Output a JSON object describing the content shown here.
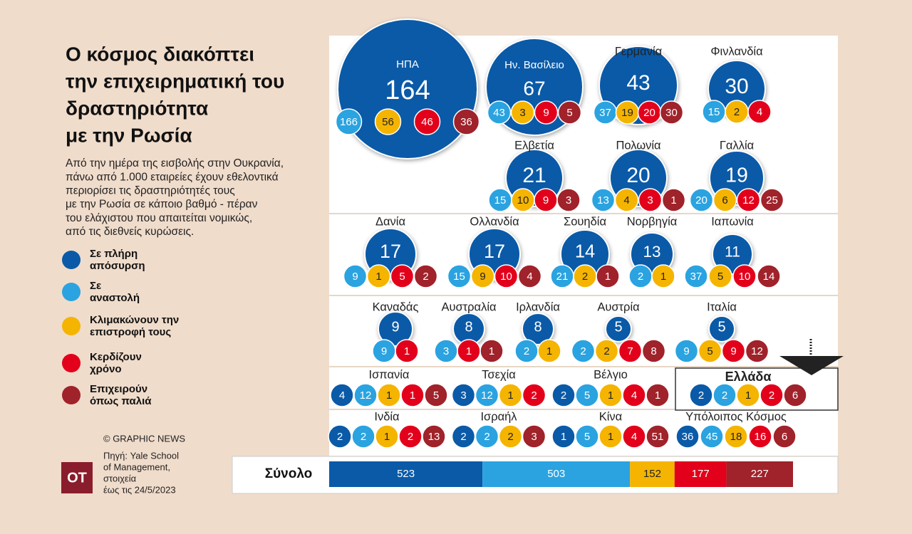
{
  "title": [
    "Ο κόσμος διακόπτει",
    "την επιχειρηματική του",
    "δραστηριότητα",
    "με την Ρωσία"
  ],
  "subtitle": [
    "Από την ημέρα της εισβολής στην Ουκρανία,",
    "πάνω από 1.000 εταιρείες έχουν εθελοντικά",
    "περιορίσει τις δραστηριότητές τους",
    "με την Ρωσία σε κάποιο βαθμό - πέραν",
    "του ελάχιστου που απαιτείται νομικώς,",
    "από τις διεθνείς κυρώσεις."
  ],
  "legend": [
    {
      "label": [
        "Σε πλήρη",
        "απόσυρση"
      ],
      "color": "#0a5aa8"
    },
    {
      "label": [
        "Σε",
        "αναστολή"
      ],
      "color": "#2aa3e0"
    },
    {
      "label": [
        "Κλιμακώνουν την",
        "επιστροφή τους"
      ],
      "color": "#f5b400"
    },
    {
      "label": [
        "Κερδίζουν",
        "χρόνο"
      ],
      "color": "#e3001b"
    },
    {
      "label": [
        "Επιχειρούν",
        "όπως παλιά"
      ],
      "color": "#a0222a"
    }
  ],
  "countries": [
    {
      "name": "ΗΠΑ",
      "values": [
        164,
        166,
        56,
        46,
        36
      ]
    },
    {
      "name": "Ην. Βασίλειο",
      "values": [
        67,
        43,
        3,
        9,
        5
      ]
    },
    {
      "name": "Γερμανία",
      "values": [
        43,
        37,
        19,
        20,
        30
      ]
    },
    {
      "name": "Φινλανδία",
      "values": [
        30,
        15,
        2,
        4,
        null
      ]
    },
    {
      "name": "Ελβετία",
      "values": [
        21,
        15,
        10,
        9,
        3
      ]
    },
    {
      "name": "Πολωνία",
      "values": [
        20,
        13,
        4,
        3,
        1
      ]
    },
    {
      "name": "Γαλλία",
      "values": [
        19,
        20,
        6,
        12,
        25
      ]
    },
    {
      "name": "Δανία",
      "values": [
        17,
        9,
        1,
        5,
        2
      ]
    },
    {
      "name": "Ολλανδία",
      "values": [
        17,
        15,
        9,
        10,
        4
      ]
    },
    {
      "name": "Σουηδία",
      "values": [
        14,
        21,
        2,
        null,
        1
      ]
    },
    {
      "name": "Νορβηγία",
      "values": [
        13,
        2,
        1,
        null,
        null
      ]
    },
    {
      "name": "Ιαπωνία",
      "values": [
        11,
        37,
        5,
        10,
        14
      ]
    },
    {
      "name": "Καναδάς",
      "values": [
        9,
        9,
        null,
        1,
        null
      ]
    },
    {
      "name": "Αυστραλία",
      "values": [
        8,
        3,
        null,
        1,
        1
      ]
    },
    {
      "name": "Ιρλανδία",
      "values": [
        8,
        2,
        1,
        null,
        null
      ]
    },
    {
      "name": "Αυστρία",
      "values": [
        5,
        2,
        2,
        7,
        8
      ]
    },
    {
      "name": "Ιταλία",
      "values": [
        5,
        9,
        5,
        9,
        12
      ]
    },
    {
      "name": "Ισπανία",
      "values": [
        4,
        12,
        1,
        1,
        5
      ]
    },
    {
      "name": "Τσεχία",
      "values": [
        3,
        12,
        1,
        2,
        null
      ]
    },
    {
      "name": "Βέλγιο",
      "values": [
        2,
        5,
        1,
        4,
        1
      ]
    },
    {
      "name": "Ελλάδα",
      "values": [
        2,
        2,
        1,
        2,
        6
      ]
    },
    {
      "name": "Ινδία",
      "values": [
        2,
        2,
        1,
        2,
        13
      ]
    },
    {
      "name": "Ισραήλ",
      "values": [
        2,
        2,
        2,
        null,
        3
      ]
    },
    {
      "name": "Κίνα",
      "values": [
        1,
        5,
        1,
        4,
        51
      ]
    },
    {
      "name": "Υπόλοιπος Κόσμος",
      "values": [
        36,
        45,
        18,
        16,
        6
      ]
    }
  ],
  "total": {
    "label": "Σύνολο",
    "values": [
      523,
      503,
      152,
      177,
      227
    ]
  },
  "credit": "© GRAPHIC NEWS",
  "source": [
    "Πηγή: Yale School",
    "of Management,",
    "στοιχεία",
    "έως τις 24/5/2023"
  ],
  "logo": "ΟΤ"
}
